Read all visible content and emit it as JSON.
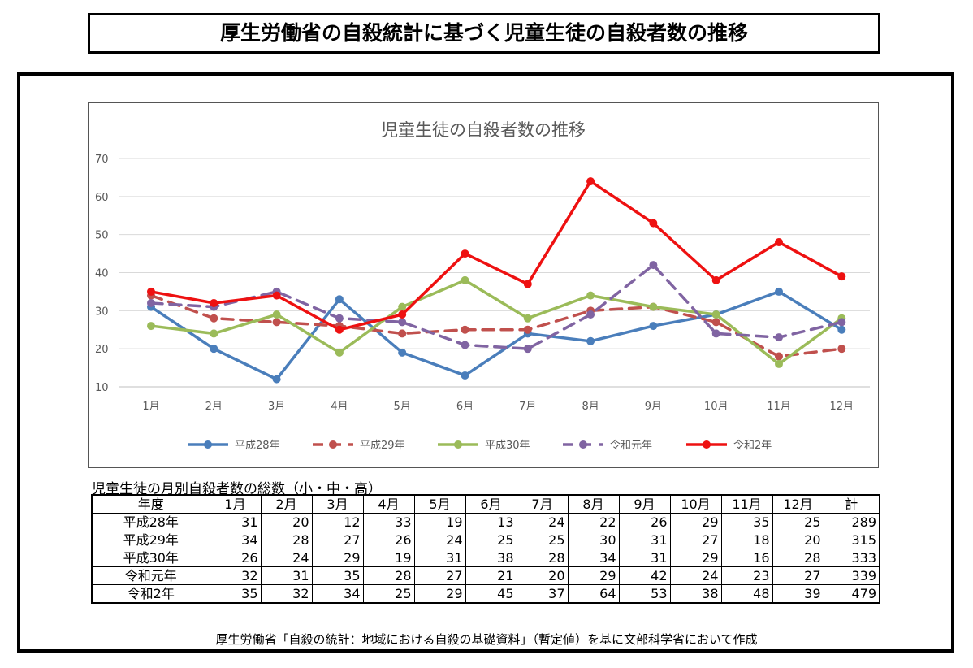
{
  "page": {
    "main_title": "厚生労働省の自殺統計に基づく児童生徒の自殺者数の推移",
    "table_caption": "児童生徒の月別自殺者数の総数（小・中・高）",
    "source_note": "厚生労働省「自殺の統計：地域における自殺の基礎資料」（暫定値）を基に文部科学省において作成"
  },
  "chart_data": {
    "type": "line",
    "title": "児童生徒の自殺者数の推移",
    "categories": [
      "1月",
      "2月",
      "3月",
      "4月",
      "5月",
      "6月",
      "7月",
      "8月",
      "9月",
      "10月",
      "11月",
      "12月"
    ],
    "y_ticks": [
      "10",
      "20",
      "30",
      "40",
      "50",
      "60",
      "70"
    ],
    "ylim": [
      10,
      70
    ],
    "grid": true,
    "legend_position": "bottom",
    "series": [
      {
        "name": "平成28年",
        "color": "#4a7ebb",
        "dash": "solid",
        "values": [
          31,
          20,
          12,
          33,
          19,
          13,
          24,
          22,
          26,
          29,
          35,
          25
        ]
      },
      {
        "name": "平成29年",
        "color": "#c0504d",
        "dash": "dashed",
        "values": [
          34,
          28,
          27,
          26,
          24,
          25,
          25,
          30,
          31,
          27,
          18,
          20
        ]
      },
      {
        "name": "平成30年",
        "color": "#9bbb59",
        "dash": "solid",
        "values": [
          26,
          24,
          29,
          19,
          31,
          38,
          28,
          34,
          31,
          29,
          16,
          28
        ]
      },
      {
        "name": "令和元年",
        "color": "#8064a2",
        "dash": "dashed",
        "values": [
          32,
          31,
          35,
          28,
          27,
          21,
          20,
          29,
          42,
          24,
          23,
          27
        ]
      },
      {
        "name": "令和2年",
        "color": "#ee1111",
        "dash": "solid",
        "values": [
          35,
          32,
          34,
          25,
          29,
          45,
          37,
          64,
          53,
          38,
          48,
          39
        ]
      }
    ]
  },
  "table": {
    "headers": [
      "年度",
      "1月",
      "2月",
      "3月",
      "4月",
      "5月",
      "6月",
      "7月",
      "8月",
      "9月",
      "10月",
      "11月",
      "12月",
      "計"
    ],
    "rows": [
      {
        "label": "平成28年",
        "values": [
          "31",
          "20",
          "12",
          "33",
          "19",
          "13",
          "24",
          "22",
          "26",
          "29",
          "35",
          "25"
        ],
        "total": "289"
      },
      {
        "label": "平成29年",
        "values": [
          "34",
          "28",
          "27",
          "26",
          "24",
          "25",
          "25",
          "30",
          "31",
          "27",
          "18",
          "20"
        ],
        "total": "315"
      },
      {
        "label": "平成30年",
        "values": [
          "26",
          "24",
          "29",
          "19",
          "31",
          "38",
          "28",
          "34",
          "31",
          "29",
          "16",
          "28"
        ],
        "total": "333"
      },
      {
        "label": "令和元年",
        "values": [
          "32",
          "31",
          "35",
          "28",
          "27",
          "21",
          "20",
          "29",
          "42",
          "24",
          "23",
          "27"
        ],
        "total": "339"
      },
      {
        "label": "令和2年",
        "values": [
          "35",
          "32",
          "34",
          "25",
          "29",
          "45",
          "37",
          "64",
          "53",
          "38",
          "48",
          "39"
        ],
        "total": "479"
      }
    ]
  }
}
